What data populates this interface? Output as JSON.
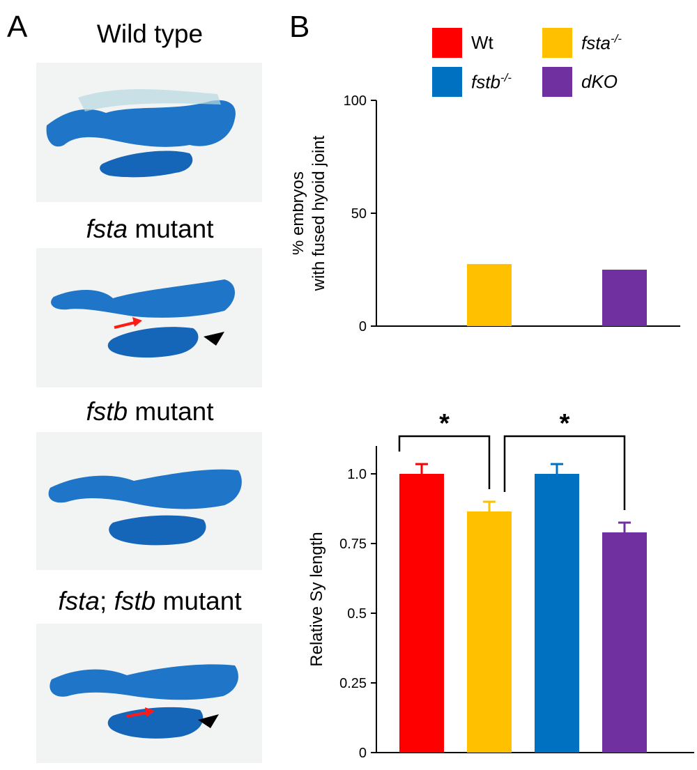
{
  "panel_a": {
    "letter": "A",
    "titles": [
      {
        "parts": [
          {
            "text": "Wild type",
            "italic": false
          }
        ]
      },
      {
        "parts": [
          {
            "text": "fsta",
            "italic": true
          },
          {
            "text": " mutant",
            "italic": false
          }
        ]
      },
      {
        "parts": [
          {
            "text": "fstb",
            "italic": true
          },
          {
            "text": " mutant",
            "italic": false
          }
        ]
      },
      {
        "parts": [
          {
            "text": "fsta",
            "italic": true
          },
          {
            "text": "; ",
            "italic": false
          },
          {
            "text": "fstb",
            "italic": true
          },
          {
            "text": " mutant",
            "italic": false
          }
        ]
      }
    ],
    "arrows": [
      {
        "image": 1,
        "red_arrow": true,
        "black_arrowhead": true
      },
      {
        "image": 3,
        "red_arrow": true,
        "black_arrowhead": true
      }
    ]
  },
  "panel_b": {
    "letter": "B",
    "legend": [
      {
        "name": "Wt",
        "sup": "",
        "color": "#ff0000",
        "italic": false
      },
      {
        "name": "fsta",
        "sup": "-/-",
        "color": "#ffc000",
        "italic": true
      },
      {
        "name": "fstb",
        "sup": "-/-",
        "color": "#0070c0",
        "italic": true
      },
      {
        "name": "dKO",
        "sup": "",
        "color": "#7030a0",
        "italic": true
      }
    ]
  },
  "colors": {
    "wt": "#ff0000",
    "fsta": "#ffc000",
    "fstb": "#0070c0",
    "dko": "#7030a0",
    "cartilage": "#1a6fbf",
    "red_arrow": "#ff1a1a"
  },
  "chart_data": [
    {
      "type": "bar",
      "categories": [
        "Wt",
        "fsta-/-",
        "fstb-/-",
        "dKO"
      ],
      "values": [
        0,
        27.5,
        0,
        25
      ],
      "colors": [
        "#ff0000",
        "#ffc000",
        "#0070c0",
        "#7030a0"
      ],
      "ylabel_lines": [
        "% embryos",
        "with fused hyoid joint"
      ],
      "yticks": [
        0,
        50,
        100
      ],
      "ytick_labels": [
        "0",
        "50",
        "100"
      ],
      "ylim": [
        0,
        100
      ],
      "grid": false
    },
    {
      "type": "bar",
      "categories": [
        "Wt",
        "fsta-/-",
        "fstb-/-",
        "dKO"
      ],
      "values": [
        1.0,
        0.865,
        1.0,
        0.79
      ],
      "errors": [
        0.035,
        0.035,
        0.035,
        0.035
      ],
      "colors": [
        "#ff0000",
        "#ffc000",
        "#0070c0",
        "#7030a0"
      ],
      "ylabel": "Relative Sy length",
      "yticks": [
        0,
        0.25,
        0.5,
        0.75,
        1.0
      ],
      "ytick_labels": [
        "0",
        "0.25",
        "0.5",
        "0.75",
        "1.0"
      ],
      "ylim": [
        0,
        1.1
      ],
      "grid": false,
      "significance": [
        {
          "from": 0,
          "to": 1,
          "label": "*"
        },
        {
          "from": 1,
          "to": 3,
          "label": "*"
        }
      ]
    }
  ]
}
